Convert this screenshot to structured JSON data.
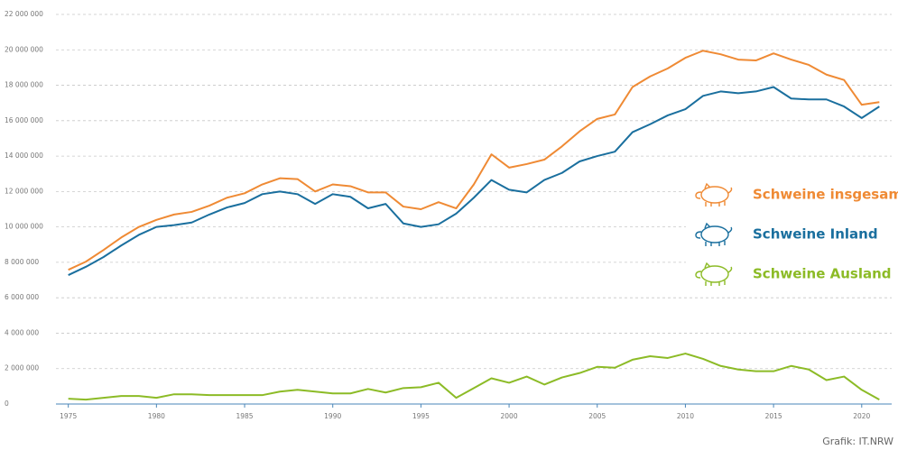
{
  "chart_data": {
    "type": "line",
    "source": "Grafik: IT.NRW",
    "x": [
      1975,
      1976,
      1977,
      1978,
      1979,
      1980,
      1981,
      1982,
      1983,
      1984,
      1985,
      1986,
      1987,
      1988,
      1989,
      1990,
      1991,
      1992,
      1993,
      1994,
      1995,
      1996,
      1997,
      1998,
      1999,
      2000,
      2001,
      2002,
      2003,
      2004,
      2005,
      2006,
      2007,
      2008,
      2009,
      2010,
      2011,
      2012,
      2013,
      2014,
      2015,
      2016,
      2017,
      2018,
      2019,
      2020,
      2021
    ],
    "series": [
      {
        "name": "Schweine insgesamt",
        "color": "#ef8a34",
        "values": [
          7580000,
          8040000,
          8700000,
          9400000,
          10000000,
          10400000,
          10700000,
          10850000,
          11200000,
          11650000,
          11900000,
          12400000,
          12750000,
          12700000,
          12000000,
          12400000,
          12300000,
          11950000,
          11950000,
          11150000,
          11000000,
          11400000,
          11050000,
          12400000,
          14100000,
          13350000,
          13550000,
          13800000,
          14550000,
          15400000,
          16100000,
          16350000,
          17900000,
          18500000,
          18950000,
          19550000,
          19950000,
          19750000,
          19450000,
          19400000,
          19800000,
          19450000,
          19150000,
          18600000,
          18300000,
          16900000,
          17050000
        ]
      },
      {
        "name": "Schweine Inland",
        "color": "#1a6f9e",
        "values": [
          7280000,
          7750000,
          8300000,
          8950000,
          9550000,
          10000000,
          10100000,
          10250000,
          10700000,
          11100000,
          11350000,
          11850000,
          12000000,
          11850000,
          11300000,
          11850000,
          11700000,
          11050000,
          11300000,
          10200000,
          10000000,
          10150000,
          10750000,
          11650000,
          12650000,
          12100000,
          11950000,
          12650000,
          13050000,
          13700000,
          14000000,
          14250000,
          15350000,
          15800000,
          16300000,
          16650000,
          17400000,
          17650000,
          17550000,
          17650000,
          17900000,
          17250000,
          17200000,
          17200000,
          16800000,
          16150000,
          16800000
        ]
      },
      {
        "name": "Schweine Ausland",
        "color": "#8cbb26",
        "values": [
          300000,
          250000,
          350000,
          450000,
          450000,
          350000,
          550000,
          550000,
          500000,
          500000,
          500000,
          500000,
          700000,
          800000,
          700000,
          600000,
          600000,
          850000,
          650000,
          900000,
          950000,
          1200000,
          350000,
          900000,
          1450000,
          1200000,
          1550000,
          1100000,
          1500000,
          1750000,
          2100000,
          2050000,
          2500000,
          2700000,
          2600000,
          2850000,
          2550000,
          2150000,
          1950000,
          1850000,
          1850000,
          2150000,
          1950000,
          1350000,
          1550000,
          800000,
          250000
        ]
      }
    ],
    "xlim": [
      1974.3,
      2021.7
    ],
    "xticks": [
      1975,
      1980,
      1985,
      1990,
      1995,
      2000,
      2005,
      2010,
      2015,
      2020
    ],
    "ylim": [
      0,
      22000000
    ],
    "yticks": [
      0,
      {
        "value": 2000000,
        "label": "2 000 000"
      },
      {
        "value": 4000000,
        "label": "4 000 000"
      },
      {
        "value": 6000000,
        "label": "6 000 000"
      },
      {
        "value": 8000000,
        "label": "8 000 000"
      },
      {
        "value": 10000000,
        "label": "10 000 000"
      },
      {
        "value": 12000000,
        "label": "12 000 000"
      },
      {
        "value": 14000000,
        "label": "14 000 000"
      },
      {
        "value": 16000000,
        "label": "16 000 000"
      },
      {
        "value": 18000000,
        "label": "18 000 000"
      },
      {
        "value": 20000000,
        "label": "20 000 000"
      },
      {
        "value": 22000000,
        "label": "22 000 000"
      }
    ],
    "grid": true
  }
}
